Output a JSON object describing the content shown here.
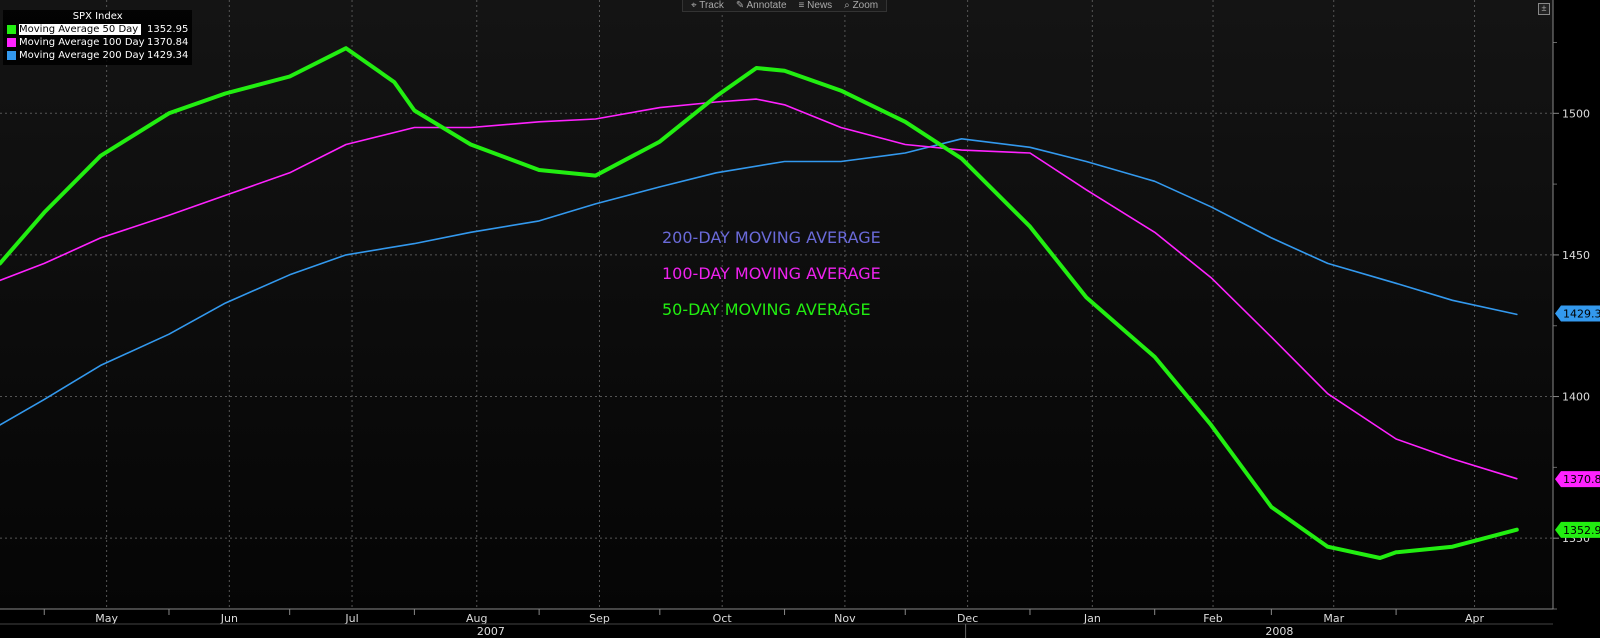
{
  "toolbar": {
    "items": [
      {
        "icon": "crosshair-icon",
        "label": "Track"
      },
      {
        "icon": "pencil-icon",
        "label": "Annotate"
      },
      {
        "icon": "list-icon",
        "label": "News"
      },
      {
        "icon": "magnifier-icon",
        "label": "Zoom"
      }
    ]
  },
  "corner_button": {
    "icon": "resize-icon"
  },
  "legend": {
    "title": "SPX Index",
    "items": [
      {
        "name": "Moving Average 50 Day",
        "value": "1352.95",
        "color": "#22ee11",
        "selected": true
      },
      {
        "name": "Moving Average 100 Day",
        "value": "1370.84",
        "color": "#ff22ff",
        "selected": false
      },
      {
        "name": "Moving Average 200 Day",
        "value": "1429.34",
        "color": "#3399ee",
        "selected": false
      }
    ]
  },
  "annotations": [
    {
      "text": "200-DAY MOVING AVERAGE",
      "color": "#6a6ad8"
    },
    {
      "text": "100-DAY MOVING AVERAGE",
      "color": "#ee22ee"
    },
    {
      "text": "50-DAY MOVING AVERAGE",
      "color": "#22ee11"
    }
  ],
  "chart_data": {
    "type": "line",
    "title": "SPX Index",
    "ylim": [
      1325,
      1540
    ],
    "xlim": [
      "2007-04-20",
      "2008-05-10"
    ],
    "y_ticks": [
      1350,
      1400,
      1450,
      1500
    ],
    "x_ticks": [
      {
        "label": "May",
        "date": "2007-05-01"
      },
      {
        "label": "Jun",
        "date": "2007-06-01"
      },
      {
        "label": "Jul",
        "date": "2007-07-01"
      },
      {
        "label": "Aug",
        "date": "2007-08-01"
      },
      {
        "label": "Sep",
        "date": "2007-09-01"
      },
      {
        "label": "Oct",
        "date": "2007-10-01"
      },
      {
        "label": "Nov",
        "date": "2007-11-01"
      },
      {
        "label": "Dec",
        "date": "2007-12-01"
      },
      {
        "label": "Jan",
        "date": "2008-01-01"
      },
      {
        "label": "Feb",
        "date": "2008-02-01"
      },
      {
        "label": "Mar",
        "date": "2008-03-01"
      },
      {
        "label": "Apr",
        "date": "2008-04-01"
      }
    ],
    "year_labels": [
      {
        "label": "2007",
        "date": "2007-08-20"
      },
      {
        "label": "2008",
        "date": "2008-03-03"
      }
    ],
    "year_separator": "2007-12-16",
    "grid": true,
    "legend_position": "top-left",
    "series": [
      {
        "name": "Moving Average 50 Day",
        "color": "#22ee11",
        "last_value": 1352.95,
        "x": [
          "2007-04-20",
          "2007-05-01",
          "2007-05-15",
          "2007-06-01",
          "2007-06-15",
          "2007-07-01",
          "2007-07-15",
          "2007-07-27",
          "2007-08-01",
          "2007-08-15",
          "2007-09-01",
          "2007-09-15",
          "2007-10-01",
          "2007-10-15",
          "2007-10-25",
          "2007-11-01",
          "2007-11-15",
          "2007-12-01",
          "2007-12-15",
          "2008-01-01",
          "2008-01-15",
          "2008-02-01",
          "2008-02-15",
          "2008-03-01",
          "2008-03-15",
          "2008-03-28",
          "2008-04-01",
          "2008-04-15",
          "2008-05-01"
        ],
        "y": [
          1447,
          1465,
          1485,
          1500,
          1507,
          1513,
          1523,
          1511,
          1501,
          1489,
          1480,
          1478,
          1490,
          1506,
          1516,
          1515,
          1508,
          1497,
          1484,
          1460,
          1435,
          1414,
          1390,
          1361,
          1347,
          1343,
          1345,
          1347,
          1353
        ]
      },
      {
        "name": "Moving Average 100 Day",
        "color": "#ff22ff",
        "last_value": 1370.84,
        "x": [
          "2007-04-20",
          "2007-05-01",
          "2007-05-15",
          "2007-06-01",
          "2007-06-15",
          "2007-07-01",
          "2007-07-15",
          "2007-08-01",
          "2007-08-15",
          "2007-09-01",
          "2007-09-15",
          "2007-10-01",
          "2007-10-15",
          "2007-10-25",
          "2007-11-01",
          "2007-11-15",
          "2007-12-01",
          "2007-12-15",
          "2008-01-01",
          "2008-01-15",
          "2008-02-01",
          "2008-02-15",
          "2008-03-01",
          "2008-03-15",
          "2008-04-01",
          "2008-04-15",
          "2008-05-01"
        ],
        "y": [
          1441,
          1447,
          1456,
          1464,
          1471,
          1479,
          1489,
          1495,
          1495,
          1497,
          1498,
          1502,
          1504,
          1505,
          1503,
          1495,
          1489,
          1487,
          1486,
          1473,
          1458,
          1442,
          1421,
          1401,
          1385,
          1378,
          1371
        ]
      },
      {
        "name": "Moving Average 200 Day",
        "color": "#3399ee",
        "last_value": 1429.34,
        "x": [
          "2007-04-20",
          "2007-05-01",
          "2007-05-15",
          "2007-06-01",
          "2007-06-15",
          "2007-07-01",
          "2007-07-15",
          "2007-08-01",
          "2007-08-15",
          "2007-09-01",
          "2007-09-15",
          "2007-10-01",
          "2007-10-15",
          "2007-11-01",
          "2007-11-15",
          "2007-12-01",
          "2007-12-15",
          "2008-01-01",
          "2008-01-15",
          "2008-02-01",
          "2008-02-15",
          "2008-03-01",
          "2008-03-15",
          "2008-04-01",
          "2008-04-15",
          "2008-05-01"
        ],
        "y": [
          1390,
          1399,
          1411,
          1422,
          1433,
          1443,
          1450,
          1454,
          1458,
          1462,
          1468,
          1474,
          1479,
          1483,
          1483,
          1486,
          1491,
          1488,
          1483,
          1476,
          1467,
          1456,
          1447,
          1440,
          1434,
          1429
        ]
      }
    ]
  }
}
